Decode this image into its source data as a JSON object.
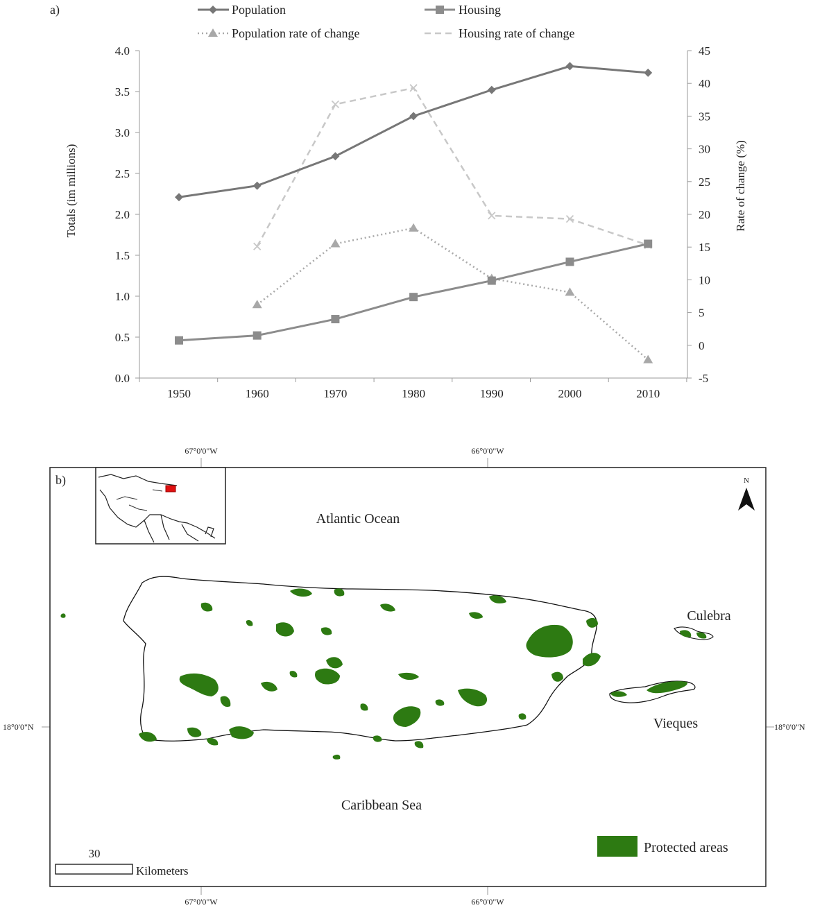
{
  "chart_data": [
    {
      "type": "line",
      "panel_label": "a)",
      "categories": [
        "1950",
        "1960",
        "1970",
        "1980",
        "1990",
        "2000",
        "2010"
      ],
      "series": [
        {
          "name": "Population",
          "axis": "left",
          "marker": "diamond",
          "style": "solid",
          "color": "#777777",
          "values": [
            2.21,
            2.35,
            2.71,
            3.2,
            3.52,
            3.81,
            3.73
          ]
        },
        {
          "name": "Housing",
          "axis": "left",
          "marker": "square",
          "style": "solid",
          "color": "#8c8c8c",
          "values": [
            0.46,
            0.52,
            0.72,
            0.99,
            1.19,
            1.42,
            1.64
          ]
        },
        {
          "name": "Population rate of change",
          "axis": "right",
          "marker": "triangle",
          "style": "dotted",
          "color": "#a8a8a8",
          "values": [
            null,
            6.2,
            15.5,
            17.9,
            10.2,
            8.1,
            -2.2
          ]
        },
        {
          "name": "Housing rate of change",
          "axis": "right",
          "marker": "x",
          "style": "dashed",
          "color": "#c8c8c8",
          "values": [
            null,
            15.1,
            36.8,
            39.3,
            19.8,
            19.3,
            15.3
          ]
        }
      ],
      "ylabel": "Totals (im millions)",
      "y2label": "Rate of change (%)",
      "xlabel": "",
      "ylim": [
        0.0,
        4.0
      ],
      "y2lim": [
        -5,
        45
      ],
      "yticks": [
        "0.0",
        "0.5",
        "1.0",
        "1.5",
        "2.0",
        "2.5",
        "3.0",
        "3.5",
        "4.0"
      ],
      "y2ticks": [
        "-5",
        "0",
        "5",
        "10",
        "15",
        "20",
        "25",
        "30",
        "35",
        "40",
        "45"
      ],
      "grid": false,
      "legend_position": "top"
    }
  ],
  "map": {
    "panel_label": "b)",
    "labels": {
      "atlantic": "Atlantic Ocean",
      "caribbean": "Caribbean Sea",
      "culebra": "Culebra",
      "vieques": "Vieques"
    },
    "north_label": "N",
    "legend_label": "Protected areas",
    "protected_color": "#2d7a12",
    "scale_value": "30",
    "scale_unit": "Kilometers",
    "coords": {
      "lon_left": "67°0'0\"W",
      "lon_right": "66°0'0\"W",
      "lat": "18°0'0\"N"
    }
  }
}
